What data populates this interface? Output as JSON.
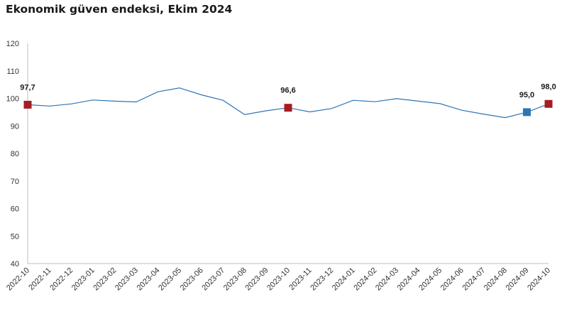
{
  "title": "Ekonomik güven endeksi, Ekim 2024",
  "colors": {
    "line": "#2e75b6",
    "marker_highlight": "#a51c24",
    "marker_previous": "#2e75b6",
    "axis": "#bfbfbf"
  },
  "chart_data": {
    "type": "line",
    "title": "Ekonomik güven endeksi, Ekim 2024",
    "xlabel": "",
    "ylabel": "",
    "ylim": [
      40,
      120
    ],
    "yticks": [
      40,
      50,
      60,
      70,
      80,
      90,
      100,
      110,
      120
    ],
    "grid": false,
    "categories": [
      "2022-10",
      "2022-11",
      "2022-12",
      "2023-01",
      "2023-02",
      "2023-03",
      "2023-04",
      "2023-05",
      "2023-06",
      "2023-07",
      "2023-08",
      "2023-09",
      "2023-10",
      "2023-11",
      "2023-12",
      "2024-01",
      "2024-02",
      "2024-03",
      "2024-04",
      "2024-05",
      "2024-06",
      "2024-07",
      "2024-08",
      "2024-09",
      "2024-10"
    ],
    "series": [
      {
        "values": [
          97.7,
          97.2,
          98.0,
          99.4,
          99.0,
          98.7,
          102.4,
          103.8,
          101.3,
          99.3,
          94.1,
          95.5,
          96.6,
          95.1,
          96.3,
          99.3,
          98.8,
          99.9,
          99.0,
          98.1,
          95.7,
          94.3,
          93.0,
          95.0,
          98.0
        ]
      }
    ],
    "markers": [
      {
        "index": 0,
        "label": "97,7",
        "style": "highlight"
      },
      {
        "index": 12,
        "label": "96,6",
        "style": "highlight"
      },
      {
        "index": 23,
        "label": "95,0",
        "style": "previous"
      },
      {
        "index": 24,
        "label": "98,0",
        "style": "highlight"
      }
    ]
  }
}
